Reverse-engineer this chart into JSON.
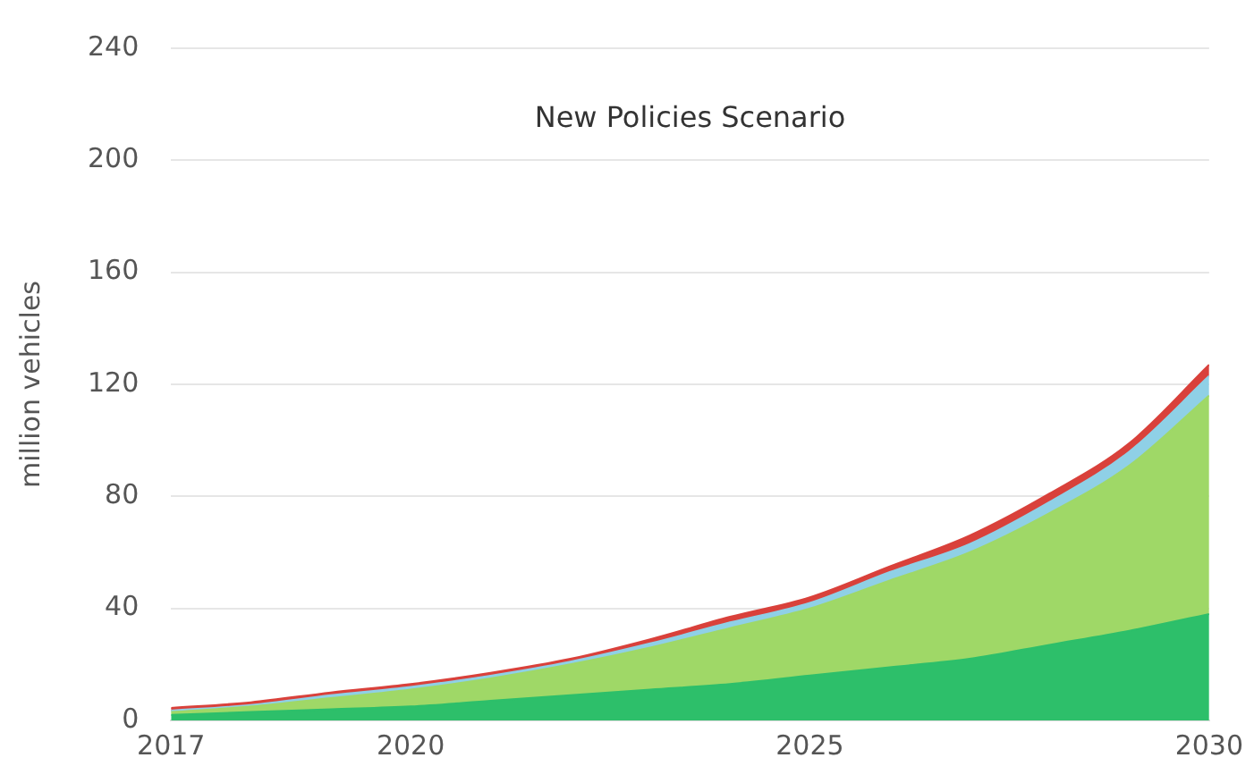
{
  "chart_data": {
    "type": "area",
    "title": "New Policies Scenario",
    "ylabel": "million vehicles",
    "stacked": true,
    "x": [
      2017,
      2018,
      2019,
      2020,
      2021,
      2022,
      2023,
      2024,
      2025,
      2026,
      2027,
      2028,
      2029,
      2030
    ],
    "series": [
      {
        "color": "#2dbf6a",
        "values": [
          2,
          3,
          4,
          5,
          7,
          9,
          11,
          13,
          16,
          19,
          22,
          27,
          32,
          38
        ]
      },
      {
        "color": "#9fd867",
        "values": [
          1,
          2,
          4,
          6,
          8,
          11,
          15,
          20,
          24,
          31,
          38,
          47,
          59,
          78
        ]
      },
      {
        "color": "#8fd0e6",
        "values": [
          0.5,
          0.5,
          1,
          1,
          1,
          1,
          1.5,
          2,
          2,
          3,
          3,
          4,
          5,
          7
        ]
      },
      {
        "color": "#d9413b",
        "values": [
          1,
          1,
          1,
          1,
          1,
          1,
          1.5,
          2,
          2,
          2,
          3,
          3,
          3,
          4
        ]
      }
    ],
    "xlim": [
      2017,
      2030
    ],
    "xticks": [
      2017,
      2020,
      2025,
      2030
    ],
    "ylim": [
      0,
      240
    ],
    "yticks": [
      0,
      40,
      80,
      120,
      160,
      200,
      240
    ],
    "grid": "y",
    "legend": false
  }
}
